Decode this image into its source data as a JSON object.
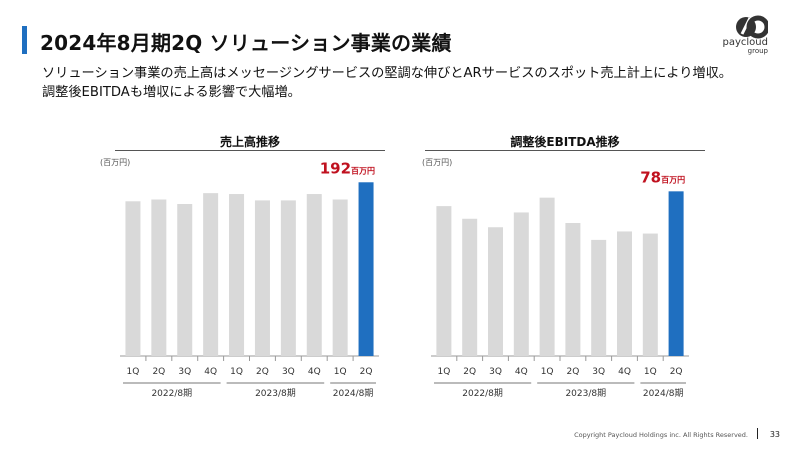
{
  "header": {
    "title": "2024年8月期2Q ソリューション事業の業績",
    "subtitle": "ソリューション事業の売上高はメッセージングサービスの堅調な伸びとARサービスのスポット売上計上により増収。調整後EBITDAも増収による影響で大幅増。"
  },
  "logo": {
    "text": "paycloud",
    "subtext": "group"
  },
  "colors": {
    "accent": "#1f6fc0",
    "bar_gray": "#d9d9d9",
    "highlight_text": "#c0111f"
  },
  "footer": {
    "copyright": "Copyright Paycloud Holdings inc. All Rights Reserved.",
    "page_number": "33"
  },
  "chart_data": [
    {
      "type": "bar",
      "title": "売上高推移",
      "unit_label": "(百万円)",
      "categories": [
        "1Q",
        "2Q",
        "3Q",
        "4Q",
        "1Q",
        "2Q",
        "3Q",
        "4Q",
        "1Q",
        "2Q"
      ],
      "groups": [
        {
          "label": "2022/8期",
          "count": 4
        },
        {
          "label": "2023/8期",
          "count": 4
        },
        {
          "label": "2024/8期",
          "count": 2
        }
      ],
      "values": [
        171,
        173,
        168,
        180,
        179,
        172,
        172,
        179,
        173,
        192
      ],
      "ylim": [
        0,
        210
      ],
      "highlight_index": 9,
      "highlight_value": "192",
      "highlight_unit": "百万円"
    },
    {
      "type": "bar",
      "title": "調整後EBITDA推移",
      "unit_label": "(百万円)",
      "categories": [
        "1Q",
        "2Q",
        "3Q",
        "4Q",
        "1Q",
        "2Q",
        "3Q",
        "4Q",
        "1Q",
        "2Q"
      ],
      "groups": [
        {
          "label": "2022/8期",
          "count": 4
        },
        {
          "label": "2023/8期",
          "count": 4
        },
        {
          "label": "2024/8期",
          "count": 2
        }
      ],
      "values": [
        71,
        65,
        61,
        68,
        75,
        63,
        55,
        59,
        58,
        78
      ],
      "ylim": [
        0,
        90
      ],
      "highlight_index": 9,
      "highlight_value": "78",
      "highlight_unit": "百万円"
    }
  ]
}
